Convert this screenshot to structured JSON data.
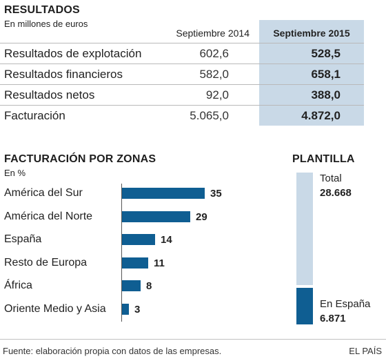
{
  "results": {
    "title": "RESULTADOS",
    "subtitle": "En millones de euros",
    "col_2014": "Septiembre 2014",
    "col_2015": "Septiembre 2015",
    "rows": [
      {
        "label": "Resultados de explotación",
        "v2014": "602,6",
        "v2015": "528,5"
      },
      {
        "label": "Resultados financieros",
        "v2014": "582,0",
        "v2015": "658,1"
      },
      {
        "label": "Resultados netos",
        "v2014": "92,0",
        "v2015": "388,0"
      },
      {
        "label": "Facturación",
        "v2014": "5.065,0",
        "v2015": "4.872,0"
      }
    ]
  },
  "colors": {
    "bar": "#0f5e92",
    "highlight": "#c9d9e7",
    "axis": "#555555"
  },
  "chart_data": [
    {
      "type": "bar",
      "title": "FACTURACIÓN POR ZONAS",
      "subtitle": "En %",
      "orientation": "horizontal",
      "categories": [
        "América del Sur",
        "América del Norte",
        "España",
        "Resto de Europa",
        "África",
        "Oriente Medio y Asia"
      ],
      "values": [
        35,
        29,
        14,
        11,
        8,
        3
      ],
      "xlim": [
        0,
        40
      ],
      "grid": false
    },
    {
      "type": "bar",
      "title": "PLANTILLA",
      "orientation": "vertical-stacked",
      "segments": [
        {
          "label": "Total",
          "value_text": "28.668",
          "value": 28668
        },
        {
          "label": "En España",
          "value_text": "6.871",
          "value": 6871
        }
      ]
    }
  ],
  "footer": {
    "source": "Fuente: elaboración propia con datos de las empresas.",
    "brand": "EL PAÍS"
  }
}
